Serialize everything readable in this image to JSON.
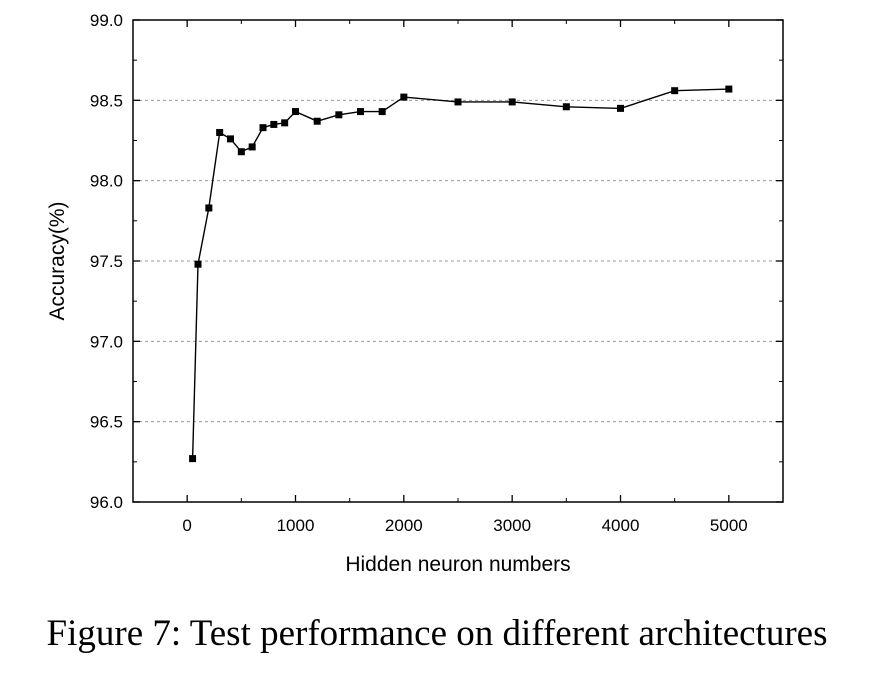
{
  "chart_data": {
    "type": "line",
    "xlabel": "Hidden neuron numbers",
    "ylabel": "Accuracy(%)",
    "xlim": [
      -500,
      5500
    ],
    "ylim": [
      96.0,
      99.0
    ],
    "x_ticks": [
      0,
      1000,
      2000,
      3000,
      4000,
      5000
    ],
    "x_tick_labels": [
      "0",
      "1000",
      "2000",
      "3000",
      "4000",
      "5000"
    ],
    "y_ticks": [
      96.0,
      96.5,
      97.0,
      97.5,
      98.0,
      98.5,
      99.0
    ],
    "y_tick_labels": [
      "96.0",
      "96.5",
      "97.0",
      "97.5",
      "98.0",
      "98.5",
      "99.0"
    ],
    "grid": "horizontal dashed",
    "marker": "square",
    "series": [
      {
        "color": "#000000",
        "x": [
          50,
          100,
          200,
          300,
          400,
          500,
          600,
          700,
          800,
          900,
          1000,
          1200,
          1400,
          1600,
          1800,
          2000,
          2500,
          3000,
          3500,
          4000,
          4500,
          5000
        ],
        "y": [
          96.27,
          97.48,
          97.83,
          98.3,
          98.26,
          98.18,
          98.21,
          98.33,
          98.35,
          98.36,
          98.43,
          98.37,
          98.41,
          98.43,
          98.43,
          98.52,
          98.49,
          98.49,
          98.46,
          98.45,
          98.56,
          98.57
        ]
      }
    ]
  },
  "caption": "Figure 7: Test performance on different architectures"
}
